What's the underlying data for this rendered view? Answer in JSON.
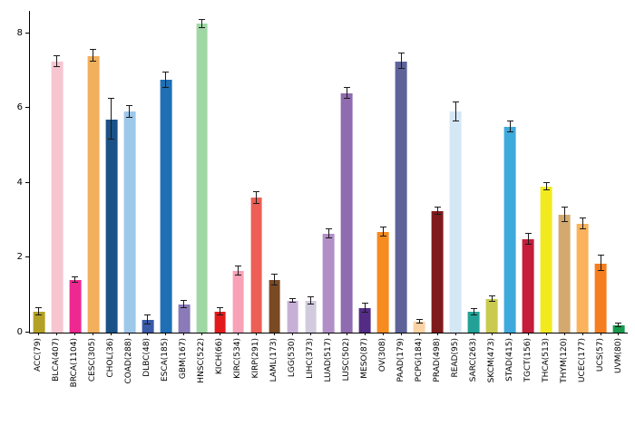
{
  "figure": {
    "background": "#ffffff",
    "axis_color": "#000000",
    "errorbar_color": "#1a1a1a"
  },
  "chart_data": {
    "type": "bar",
    "title": "",
    "xlabel": "",
    "ylabel": "",
    "ylim": [
      0,
      8.6
    ],
    "yticks": [
      0,
      2,
      4,
      6,
      8
    ],
    "grid": false,
    "legend": null,
    "error_bars": true,
    "categories": [
      "ACC(79)",
      "BLCA(407)",
      "BRCA(1104)",
      "CESC(305)",
      "CHOL(36)",
      "COAD(288)",
      "DLBC(48)",
      "ESCA(185)",
      "GBM(167)",
      "HNSC(522)",
      "KICH(66)",
      "KIRC(534)",
      "KIRP(291)",
      "LAML(173)",
      "LGG(530)",
      "LIHC(373)",
      "LUAD(517)",
      "LUSC(502)",
      "MESO(87)",
      "OV(308)",
      "PAAD(179)",
      "PCPG(184)",
      "PRAD(498)",
      "READ(95)",
      "SARC(263)",
      "SKCM(473)",
      "STAD(415)",
      "TGCT(156)",
      "THCA(513)",
      "THYM(120)",
      "UCEC(177)",
      "UCS(57)",
      "UVM(80)"
    ],
    "values": [
      0.55,
      7.25,
      1.4,
      7.4,
      5.7,
      5.9,
      0.35,
      6.75,
      0.75,
      8.25,
      0.55,
      1.65,
      3.6,
      1.4,
      0.85,
      0.85,
      2.65,
      6.4,
      0.65,
      2.7,
      7.25,
      0.3,
      3.25,
      5.9,
      0.55,
      0.9,
      5.5,
      2.5,
      3.9,
      3.15,
      2.9,
      1.85,
      0.2
    ],
    "errors": [
      0.1,
      0.15,
      0.07,
      0.15,
      0.55,
      0.15,
      0.12,
      0.2,
      0.1,
      0.1,
      0.1,
      0.12,
      0.15,
      0.15,
      0.05,
      0.1,
      0.12,
      0.15,
      0.12,
      0.12,
      0.2,
      0.05,
      0.1,
      0.25,
      0.08,
      0.08,
      0.15,
      0.15,
      0.1,
      0.2,
      0.15,
      0.2,
      0.05
    ],
    "colors": [
      "#b3a125",
      "#f7c5cf",
      "#ed2891",
      "#f2af5c",
      "#1b5287",
      "#9dc8e9",
      "#3a59a7",
      "#1f6fb5",
      "#8a7ab8",
      "#9fd8a4",
      "#e31a1c",
      "#f9a1b7",
      "#ed5f55",
      "#7a4a23",
      "#c7b0d6",
      "#d1cbdd",
      "#b18fc6",
      "#8f6bb0",
      "#542c85",
      "#f68b1f",
      "#5d6398",
      "#fad2a4",
      "#7f1a1c",
      "#d4e7f4",
      "#23a196",
      "#cacb4e",
      "#3ea9dc",
      "#c41e3a",
      "#f2ea1f",
      "#d3a96f",
      "#fbb25c",
      "#f57e20",
      "#179a4d"
    ]
  }
}
